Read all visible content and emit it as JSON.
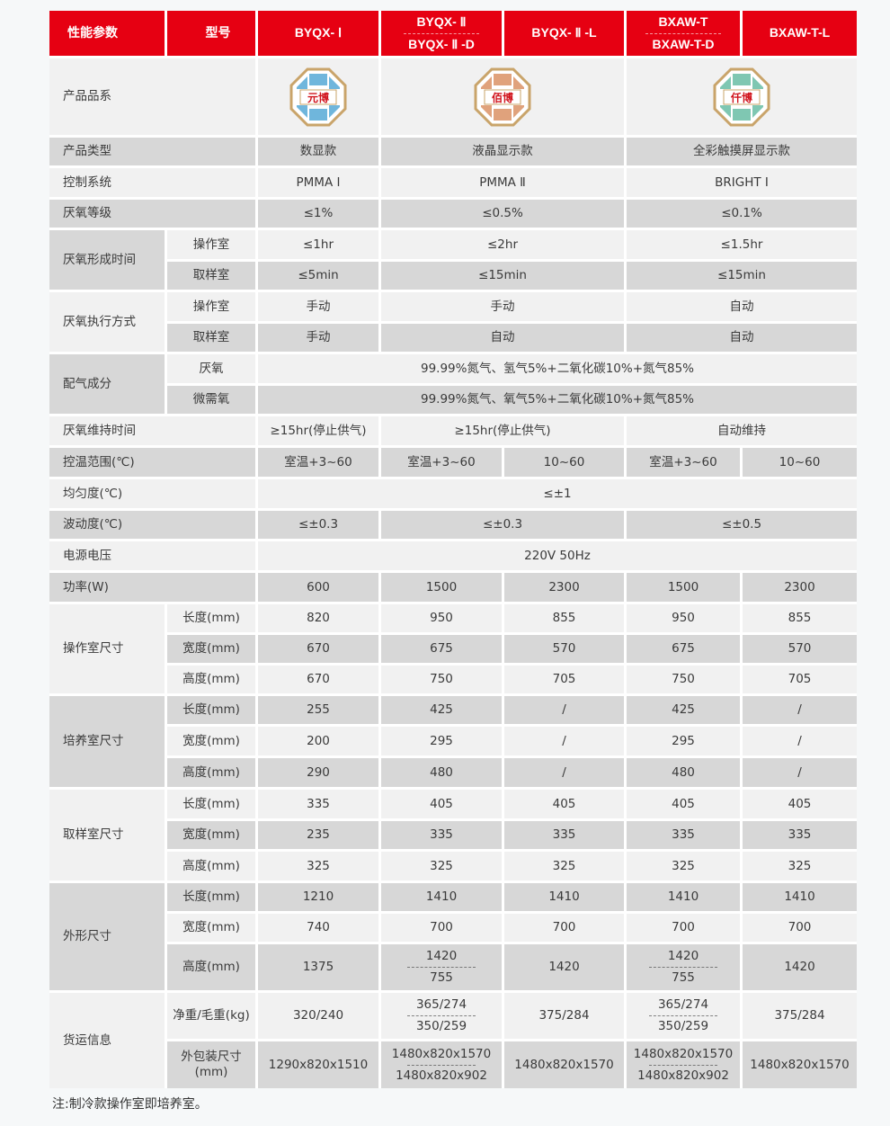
{
  "header": [
    "性能参数",
    "型号",
    "BYQX- Ⅰ",
    [
      "BYQX- Ⅱ",
      "BYQX- Ⅱ -D"
    ],
    "BYQX- Ⅱ -L",
    [
      "BXAW-T",
      "BXAW-T-D"
    ],
    "BXAW-T-L"
  ],
  "logo_row": {
    "label": "产品品系",
    "logos": [
      {
        "text": "元博",
        "color": "#6fb6dc",
        "icon": "yuanbo-logo"
      },
      {
        "text": "佰博",
        "color": "#e0a27c",
        "icon": "baibo-logo"
      },
      {
        "text": "仟博",
        "color": "#7fc7b2",
        "icon": "qianbo-logo"
      }
    ]
  },
  "groups": [
    {
      "label": "厌氧形成时间"
    },
    {
      "label": "厌氧执行方式"
    },
    {
      "label": "配气成分"
    },
    {
      "label": "操作室尺寸"
    },
    {
      "label": "培养室尺寸"
    },
    {
      "label": "取样室尺寸"
    },
    {
      "label": "外形尺寸"
    },
    {
      "label": "货运信息"
    }
  ],
  "rows": [
    {
      "label": "产品类型",
      "values": [
        "数显款",
        "液晶显示款",
        "全彩触摸屏显示款"
      ]
    },
    {
      "label": "控制系统",
      "values": [
        "PMMA Ⅰ",
        "PMMA Ⅱ",
        "BRIGHT Ⅰ"
      ]
    },
    {
      "label": "厌氧等级",
      "values": [
        "≤1%",
        "≤0.5%",
        "≤0.1%"
      ]
    },
    {
      "sub": "操作室",
      "values": [
        "≤1hr",
        "≤2hr",
        "≤1.5hr"
      ]
    },
    {
      "sub": "取样室",
      "values": [
        "≤5min",
        "≤15min",
        "≤15min"
      ]
    },
    {
      "sub": "操作室",
      "values": [
        "手动",
        "手动",
        "自动"
      ]
    },
    {
      "sub": "取样室",
      "values": [
        "手动",
        "自动",
        "自动"
      ]
    },
    {
      "sub": "厌氧",
      "values": [
        "99.99%氮气、氢气5%+二氧化碳10%+氮气85%"
      ]
    },
    {
      "sub": "微需氧",
      "values": [
        "99.99%氮气、氧气5%+二氧化碳10%+氮气85%"
      ]
    },
    {
      "label": "厌氧维持时间",
      "values": [
        "≥15hr(停止供气)",
        "≥15hr(停止供气)",
        "自动维持"
      ]
    },
    {
      "label": "控温范围(℃)",
      "values": [
        "室温+3~60",
        "室温+3~60",
        "10~60",
        "室温+3~60",
        "10~60"
      ]
    },
    {
      "label": "均匀度(℃)",
      "values": [
        "≤±1"
      ]
    },
    {
      "label": "波动度(℃)",
      "values": [
        "≤±0.3",
        "≤±0.3",
        "≤±0.5"
      ]
    },
    {
      "label": "电源电压",
      "values": [
        "220V 50Hz"
      ]
    },
    {
      "label": "功率(W)",
      "values": [
        "600",
        "1500",
        "2300",
        "1500",
        "2300"
      ]
    },
    {
      "sub": "长度(mm)",
      "values": [
        "820",
        "950",
        "855",
        "950",
        "855"
      ]
    },
    {
      "sub": "宽度(mm)",
      "values": [
        "670",
        "675",
        "570",
        "675",
        "570"
      ]
    },
    {
      "sub": "高度(mm)",
      "values": [
        "670",
        "750",
        "705",
        "750",
        "705"
      ]
    },
    {
      "sub": "长度(mm)",
      "values": [
        "255",
        "425",
        "/",
        "425",
        "/"
      ]
    },
    {
      "sub": "宽度(mm)",
      "values": [
        "200",
        "295",
        "/",
        "295",
        "/"
      ]
    },
    {
      "sub": "高度(mm)",
      "values": [
        "290",
        "480",
        "/",
        "480",
        "/"
      ]
    },
    {
      "sub": "长度(mm)",
      "values": [
        "335",
        "405",
        "405",
        "405",
        "405"
      ]
    },
    {
      "sub": "宽度(mm)",
      "values": [
        "235",
        "335",
        "335",
        "335",
        "335"
      ]
    },
    {
      "sub": "高度(mm)",
      "values": [
        "325",
        "325",
        "325",
        "325",
        "325"
      ]
    },
    {
      "sub": "长度(mm)",
      "values": [
        "1210",
        "1410",
        "1410",
        "1410",
        "1410"
      ]
    },
    {
      "sub": "宽度(mm)",
      "values": [
        "740",
        "700",
        "700",
        "700",
        "700"
      ]
    },
    {
      "sub": "高度(mm)",
      "values": [
        "1375",
        [
          "1420",
          "755"
        ],
        "1420",
        [
          "1420",
          "755"
        ],
        "1420"
      ]
    },
    {
      "sub": "净重/毛重(kg)",
      "values": [
        "320/240",
        [
          "365/274",
          "350/259"
        ],
        "375/284",
        [
          "365/274",
          "350/259"
        ],
        "375/284"
      ]
    },
    {
      "sub": "外包装尺寸(mm)",
      "values": [
        "1290x820x1510",
        [
          "1480x820x1570",
          "1480x820x902"
        ],
        "1480x820x1570",
        [
          "1480x820x1570",
          "1480x820x902"
        ],
        "1480x820x1570"
      ]
    }
  ],
  "note": "注:制冷款操作室即培养室。",
  "colors": {
    "header_red": "#e60012",
    "row_light": "#f1f1f1",
    "row_gray": "#d7d7d7"
  }
}
